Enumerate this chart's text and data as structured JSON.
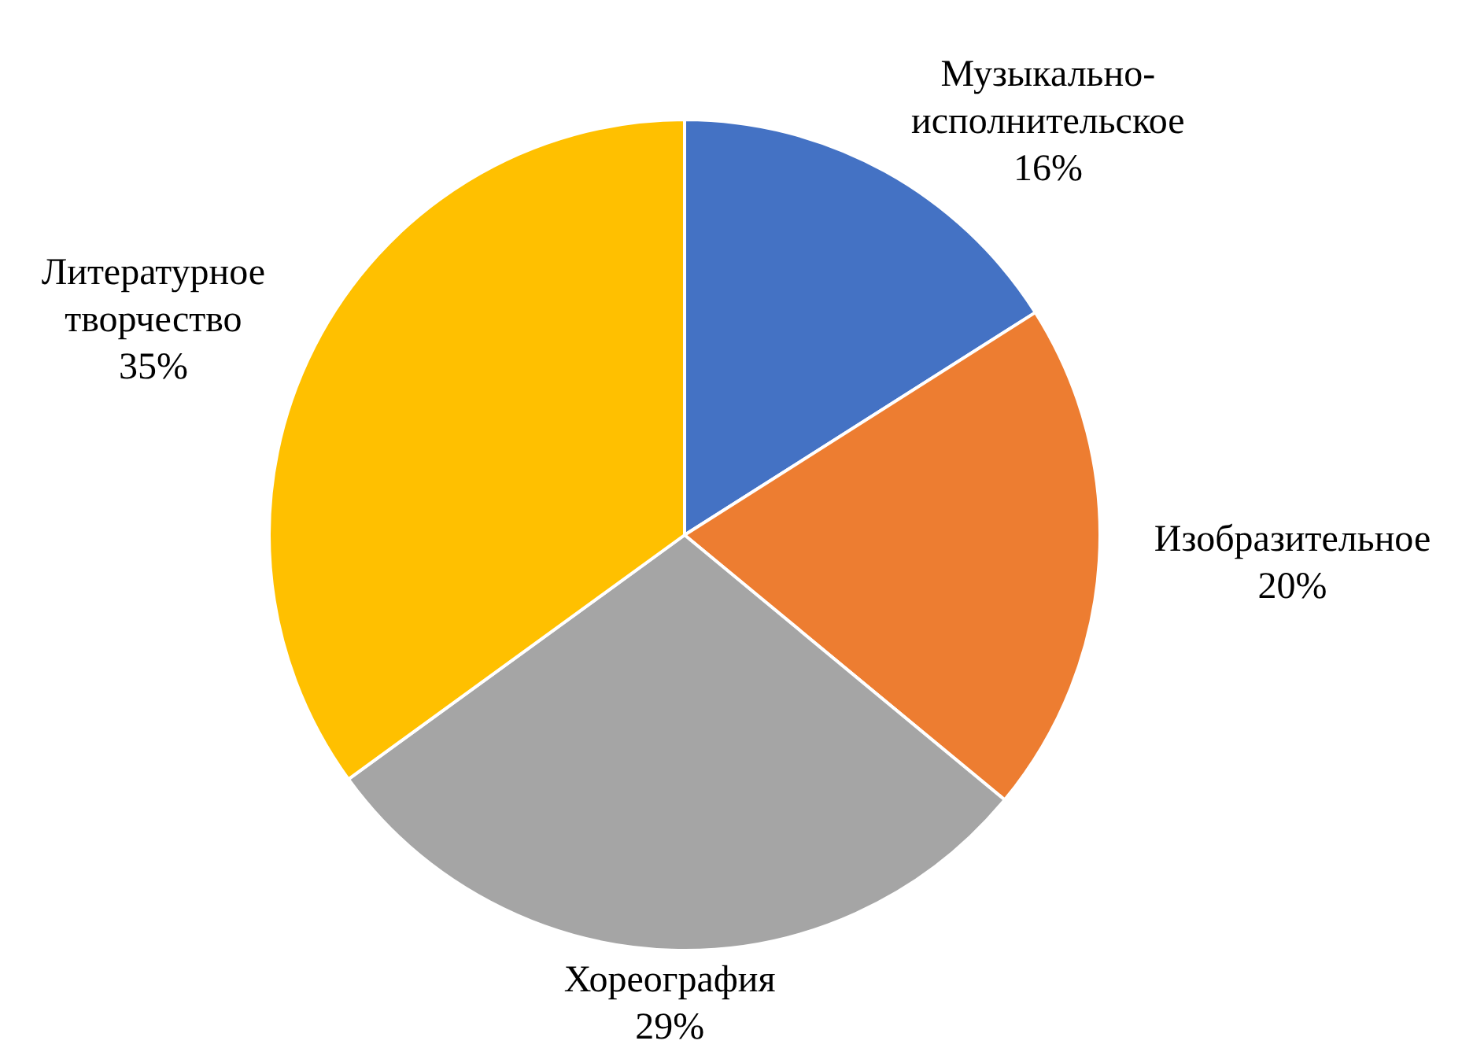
{
  "chart_data": {
    "type": "pie",
    "categories": [
      "Музыкально-исполнительское",
      "Изобразительное",
      "Хореография",
      "Литературное творчество"
    ],
    "values": [
      16,
      20,
      29,
      35
    ],
    "value_labels": [
      "16%",
      "20%",
      "29%",
      "35%"
    ],
    "colors": [
      "#4472c4",
      "#ed7d31",
      "#a5a5a5",
      "#ffc000"
    ],
    "legend": false
  }
}
